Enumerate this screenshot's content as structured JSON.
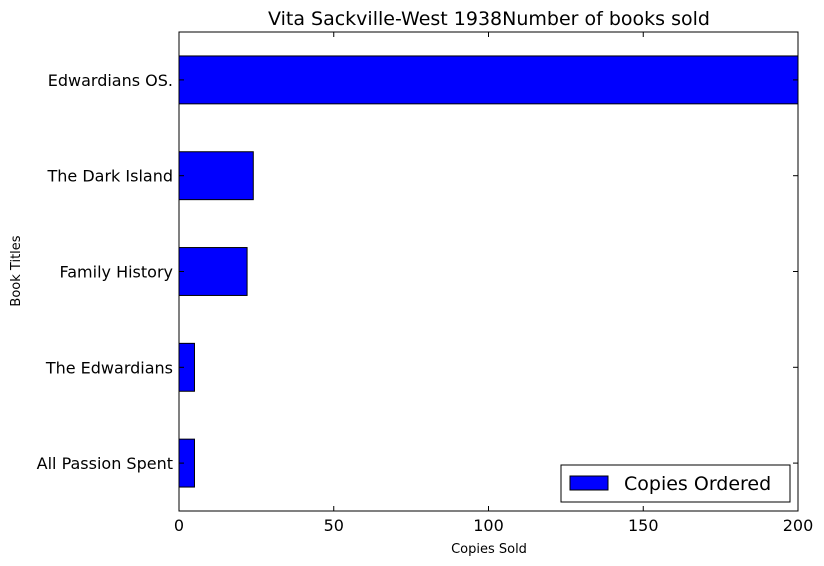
{
  "chart_data": {
    "type": "bar",
    "orientation": "horizontal",
    "title": "Vita Sackville-West 1938Number of books sold",
    "xlabel": "Copies Sold",
    "ylabel": "Book Titles",
    "categories": [
      "All Passion Spent",
      "The Edwardians",
      "Family History",
      "The Dark Island",
      "Edwardians OS."
    ],
    "series": [
      {
        "name": "Copies Ordered",
        "values": [
          5,
          5,
          22,
          24,
          200
        ],
        "color": "#0000ff"
      }
    ],
    "xlim": [
      0,
      200
    ],
    "xticks": [
      "0",
      "50",
      "100",
      "150",
      "200"
    ],
    "grid": false,
    "legend_position": "bottom-right"
  }
}
